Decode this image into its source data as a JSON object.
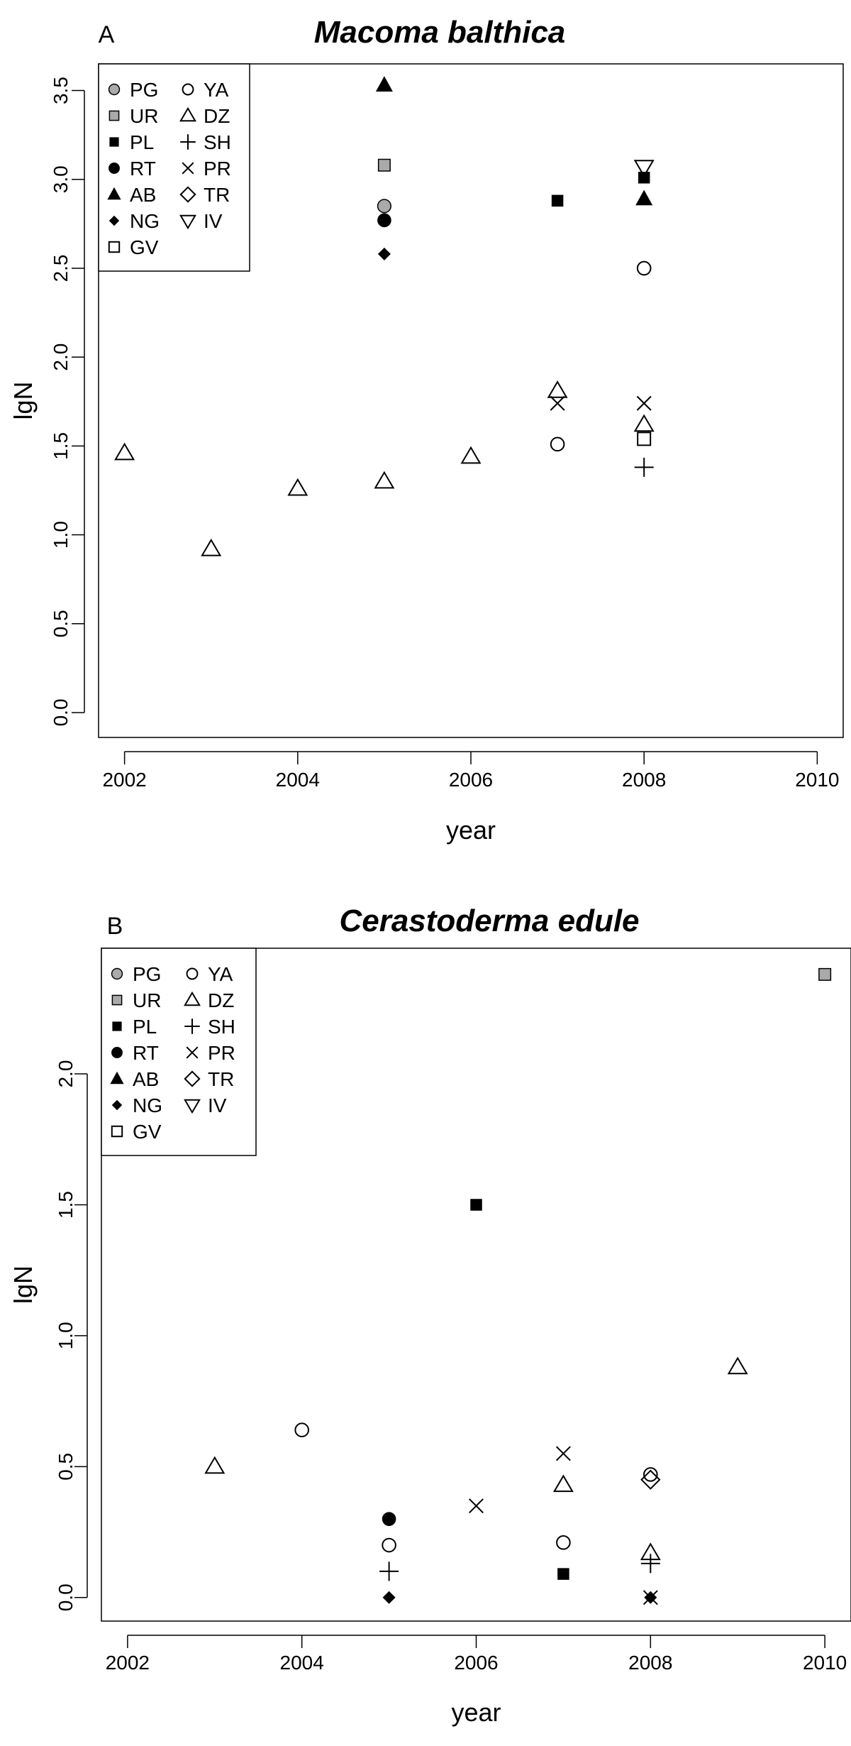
{
  "chart_data": [
    {
      "type": "scatter",
      "panel_label": "A",
      "title": "Macoma balthica",
      "xlabel": "year",
      "ylabel": "lgN",
      "xlim": [
        2001.7,
        2010.3
      ],
      "ylim": [
        -0.14,
        3.65
      ],
      "xticks": [
        "2002",
        "2004",
        "2006",
        "2008",
        "2010"
      ],
      "yticks": [
        "0.0",
        "0.5",
        "1.0",
        "1.5",
        "2.0",
        "2.5",
        "3.0",
        "3.5"
      ],
      "grid": false,
      "legend_position": "top-left",
      "legend": [
        {
          "label": "PG",
          "marker": "circle-gray"
        },
        {
          "label": "UR",
          "marker": "square-gray"
        },
        {
          "label": "PL",
          "marker": "square-black"
        },
        {
          "label": "RT",
          "marker": "circle-black"
        },
        {
          "label": "AB",
          "marker": "triangle-black"
        },
        {
          "label": "NG",
          "marker": "diamond-black"
        },
        {
          "label": "GV",
          "marker": "square-open"
        },
        {
          "label": "YA",
          "marker": "circle-open"
        },
        {
          "label": "DZ",
          "marker": "triangle-open"
        },
        {
          "label": "SH",
          "marker": "plus"
        },
        {
          "label": "PR",
          "marker": "cross"
        },
        {
          "label": "TR",
          "marker": "diamond-open"
        },
        {
          "label": "IV",
          "marker": "triangle-down-open"
        }
      ],
      "series": [
        {
          "name": "PG",
          "marker": "circle-gray",
          "points": [
            [
              2005,
              2.85
            ]
          ]
        },
        {
          "name": "UR",
          "marker": "square-gray",
          "points": [
            [
              2005,
              3.08
            ]
          ]
        },
        {
          "name": "PL",
          "marker": "square-black",
          "points": [
            [
              2007,
              2.88
            ],
            [
              2008,
              3.01
            ]
          ]
        },
        {
          "name": "RT",
          "marker": "circle-black",
          "points": [
            [
              2005,
              2.77
            ]
          ]
        },
        {
          "name": "AB",
          "marker": "triangle-black",
          "points": [
            [
              2005,
              3.53
            ],
            [
              2008,
              2.89
            ]
          ]
        },
        {
          "name": "NG",
          "marker": "diamond-black",
          "points": [
            [
              2005,
              2.58
            ]
          ]
        },
        {
          "name": "GV",
          "marker": "square-open",
          "points": [
            [
              2008,
              1.54
            ]
          ]
        },
        {
          "name": "YA",
          "marker": "circle-open",
          "points": [
            [
              2007,
              1.51
            ],
            [
              2008,
              2.5
            ]
          ]
        },
        {
          "name": "DZ",
          "marker": "triangle-open",
          "points": [
            [
              2002,
              1.46
            ],
            [
              2003,
              0.92
            ],
            [
              2004,
              1.26
            ],
            [
              2005,
              1.3
            ],
            [
              2006,
              1.44
            ],
            [
              2007,
              1.81
            ],
            [
              2008,
              1.62
            ]
          ]
        },
        {
          "name": "SH",
          "marker": "plus",
          "points": [
            [
              2008,
              1.38
            ]
          ]
        },
        {
          "name": "PR",
          "marker": "cross",
          "points": [
            [
              2007,
              1.74
            ],
            [
              2008,
              1.74
            ]
          ]
        },
        {
          "name": "TR",
          "marker": "diamond-open",
          "points": []
        },
        {
          "name": "IV",
          "marker": "triangle-down-open",
          "points": [
            [
              2008,
              3.07
            ]
          ]
        }
      ]
    },
    {
      "type": "scatter",
      "panel_label": "B",
      "title": "Cerastoderma edule",
      "xlabel": "year",
      "ylabel": "lgN",
      "xlim": [
        2001.7,
        2010.3
      ],
      "ylim": [
        -0.09,
        2.48
      ],
      "xticks": [
        "2002",
        "2004",
        "2006",
        "2008",
        "2010"
      ],
      "yticks": [
        "0.0",
        "0.5",
        "1.0",
        "1.5",
        "2.0"
      ],
      "grid": false,
      "legend_position": "top-left",
      "legend": [
        {
          "label": "PG",
          "marker": "circle-gray"
        },
        {
          "label": "UR",
          "marker": "square-gray"
        },
        {
          "label": "PL",
          "marker": "square-black"
        },
        {
          "label": "RT",
          "marker": "circle-black"
        },
        {
          "label": "AB",
          "marker": "triangle-black"
        },
        {
          "label": "NG",
          "marker": "diamond-black"
        },
        {
          "label": "GV",
          "marker": "square-open"
        },
        {
          "label": "YA",
          "marker": "circle-open"
        },
        {
          "label": "DZ",
          "marker": "triangle-open"
        },
        {
          "label": "SH",
          "marker": "plus"
        },
        {
          "label": "PR",
          "marker": "cross"
        },
        {
          "label": "TR",
          "marker": "diamond-open"
        },
        {
          "label": "IV",
          "marker": "triangle-down-open"
        }
      ],
      "series": [
        {
          "name": "PG",
          "marker": "circle-gray",
          "points": []
        },
        {
          "name": "UR",
          "marker": "square-gray",
          "points": [
            [
              2010,
              2.38
            ]
          ]
        },
        {
          "name": "PL",
          "marker": "square-black",
          "points": [
            [
              2006,
              1.5
            ],
            [
              2007,
              0.09
            ]
          ]
        },
        {
          "name": "RT",
          "marker": "circle-black",
          "points": [
            [
              2005,
              0.3
            ]
          ]
        },
        {
          "name": "AB",
          "marker": "triangle-black",
          "points": []
        },
        {
          "name": "NG",
          "marker": "diamond-black",
          "points": [
            [
              2005,
              0.0
            ],
            [
              2008,
              0.0
            ]
          ]
        },
        {
          "name": "GV",
          "marker": "square-open",
          "points": []
        },
        {
          "name": "YA",
          "marker": "circle-open",
          "points": [
            [
              2004,
              0.64
            ],
            [
              2005,
              0.2
            ],
            [
              2007,
              0.21
            ],
            [
              2008,
              0.47
            ]
          ]
        },
        {
          "name": "DZ",
          "marker": "triangle-open",
          "points": [
            [
              2003,
              0.5
            ],
            [
              2007,
              0.43
            ],
            [
              2008,
              0.17
            ],
            [
              2009,
              0.88
            ]
          ]
        },
        {
          "name": "SH",
          "marker": "plus",
          "points": [
            [
              2005,
              0.1
            ],
            [
              2008,
              0.13
            ]
          ]
        },
        {
          "name": "PR",
          "marker": "cross",
          "points": [
            [
              2006,
              0.35
            ],
            [
              2007,
              0.55
            ],
            [
              2008,
              0.0
            ]
          ]
        },
        {
          "name": "TR",
          "marker": "diamond-open",
          "points": [
            [
              2008,
              0.45
            ]
          ]
        },
        {
          "name": "IV",
          "marker": "triangle-down-open",
          "points": []
        }
      ]
    }
  ]
}
